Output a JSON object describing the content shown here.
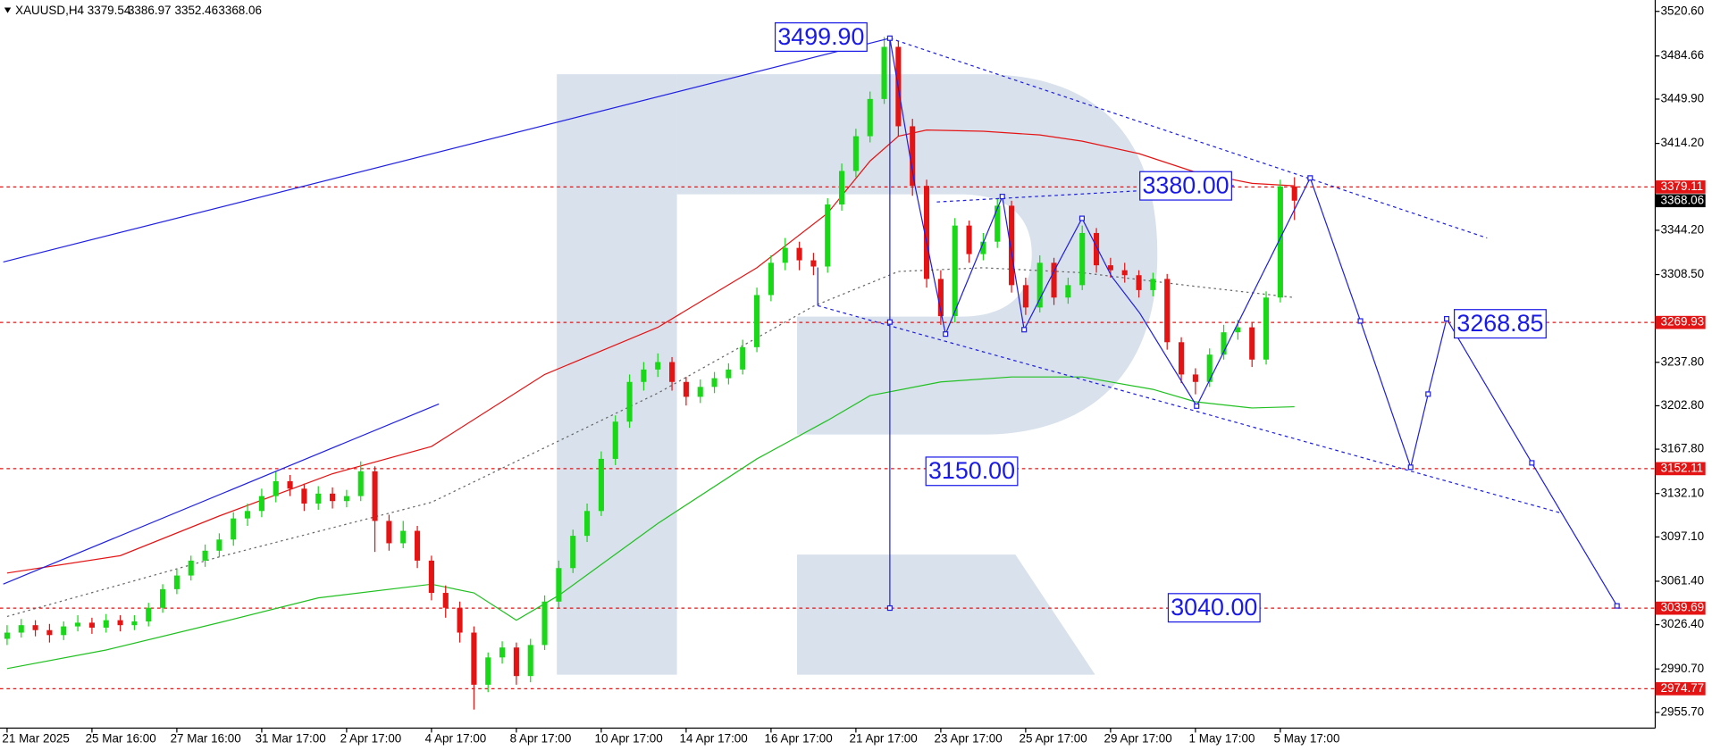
{
  "chart_data": {
    "type": "candlestick",
    "symbol": "XAUUSD,H4",
    "up_color": "#18d818",
    "down_color": "#e41414",
    "open": [
      3015,
      3020,
      3026,
      3022,
      3018,
      3025,
      3028,
      3024,
      3030,
      3026,
      3029,
      3040,
      3055,
      3066,
      3078,
      3086,
      3095,
      3112,
      3118,
      3130,
      3142,
      3136,
      3124,
      3132,
      3126,
      3130,
      3150,
      3110,
      3092,
      3102,
      3078,
      3052,
      3040,
      3020,
      2978,
      3000,
      3008,
      2985,
      3010,
      3045,
      3072,
      3098,
      3118,
      3160,
      3190,
      3222,
      3232,
      3238,
      3222,
      3210,
      3218,
      3225,
      3232,
      3250,
      3292,
      3318,
      3330,
      3320,
      3315,
      3365,
      3392,
      3420,
      3450,
      3492,
      3428,
      3380,
      3305,
      3275,
      3348,
      3325,
      3335,
      3364,
      3300,
      3282,
      3318,
      3290,
      3300,
      3342,
      3316,
      3312,
      3308,
      3296,
      3305,
      3254,
      3228,
      3222,
      3244,
      3262,
      3266,
      3240,
      3290,
      3379.54
    ],
    "high": [
      3026,
      3031,
      3030,
      3027,
      3029,
      3034,
      3032,
      3035,
      3034,
      3034,
      3044,
      3059,
      3071,
      3082,
      3091,
      3100,
      3117,
      3124,
      3136,
      3150,
      3147,
      3140,
      3138,
      3137,
      3135,
      3158,
      3154,
      3115,
      3110,
      3106,
      3082,
      3058,
      3045,
      3025,
      3004,
      3013,
      3012,
      3015,
      3050,
      3078,
      3103,
      3124,
      3166,
      3195,
      3228,
      3238,
      3245,
      3242,
      3226,
      3224,
      3230,
      3237,
      3256,
      3298,
      3324,
      3338,
      3335,
      3326,
      3370,
      3398,
      3426,
      3456,
      3499.9,
      3497,
      3434,
      3385,
      3312,
      3354,
      3352,
      3342,
      3370,
      3368,
      3306,
      3324,
      3322,
      3306,
      3348,
      3346,
      3322,
      3318,
      3312,
      3310,
      3309,
      3258,
      3233,
      3249,
      3268,
      3272,
      3270,
      3295,
      3385,
      3386.97
    ],
    "low": [
      3010,
      3016,
      3017,
      3012,
      3014,
      3021,
      3019,
      3020,
      3021,
      3022,
      3025,
      3036,
      3051,
      3062,
      3073,
      3081,
      3090,
      3106,
      3113,
      3125,
      3130,
      3118,
      3119,
      3120,
      3121,
      3126,
      3085,
      3086,
      3088,
      3072,
      3046,
      3032,
      3012,
      2958,
      2972,
      2995,
      2978,
      2980,
      3006,
      3040,
      3068,
      3093,
      3114,
      3155,
      3185,
      3215,
      3226,
      3215,
      3203,
      3205,
      3213,
      3220,
      3228,
      3246,
      3287,
      3312,
      3312,
      3308,
      3310,
      3360,
      3387,
      3415,
      3446,
      3420,
      3372,
      3298,
      3268,
      3270,
      3318,
      3320,
      3330,
      3294,
      3276,
      3278,
      3284,
      3285,
      3296,
      3310,
      3306,
      3302,
      3290,
      3291,
      3248,
      3221,
      3212,
      3218,
      3240,
      3256,
      3234,
      3236,
      3286,
      3352.46
    ],
    "close": [
      3020,
      3026,
      3022,
      3018,
      3025,
      3028,
      3024,
      3030,
      3026,
      3029,
      3040,
      3055,
      3066,
      3078,
      3086,
      3095,
      3112,
      3118,
      3130,
      3142,
      3136,
      3124,
      3132,
      3126,
      3130,
      3150,
      3110,
      3092,
      3102,
      3078,
      3052,
      3040,
      3020,
      2978,
      3000,
      3008,
      2985,
      3010,
      3045,
      3072,
      3098,
      3118,
      3160,
      3190,
      3222,
      3232,
      3238,
      3222,
      3210,
      3218,
      3225,
      3232,
      3250,
      3292,
      3318,
      3330,
      3320,
      3315,
      3365,
      3392,
      3420,
      3450,
      3492,
      3428,
      3380,
      3305,
      3275,
      3348,
      3325,
      3335,
      3364,
      3300,
      3282,
      3318,
      3290,
      3300,
      3342,
      3316,
      3312,
      3308,
      3296,
      3305,
      3254,
      3228,
      3222,
      3244,
      3262,
      3266,
      3240,
      3290,
      3379.54,
      3368.06
    ],
    "indicators": [
      {
        "color": "#e41414",
        "dashed": false,
        "x": [
          0,
          8,
          15,
          23,
          30,
          38,
          46,
          53,
          58,
          61,
          63,
          65,
          69,
          73,
          76,
          80,
          84,
          88,
          91
        ],
        "values": [
          3068,
          3082,
          3114,
          3148,
          3170,
          3228,
          3266,
          3314,
          3358,
          3400,
          3420,
          3425,
          3424,
          3421,
          3416,
          3406,
          3391,
          3382,
          3380
        ]
      },
      {
        "color": "#20c020",
        "dashed": false,
        "x": [
          0,
          7,
          15,
          22,
          30,
          33,
          36,
          39,
          46,
          53,
          58,
          61,
          66,
          71,
          76,
          81,
          84,
          88,
          91
        ],
        "values": [
          2991,
          3006,
          3028,
          3048,
          3059,
          3052,
          3030,
          3050,
          3108,
          3160,
          3191,
          3211,
          3222,
          3226,
          3226,
          3216,
          3206,
          3201,
          3202
        ]
      },
      {
        "color": "#666666",
        "dashed": true,
        "x": [
          0,
          15,
          30,
          46,
          57,
          63,
          69,
          76,
          84,
          91
        ],
        "values": [
          3033,
          3081,
          3125,
          3213,
          3283,
          3311,
          3314,
          3310,
          3299,
          3290
        ]
      }
    ],
    "levels": [
      3379.11,
      3269.93,
      3152.11,
      3039.69,
      2974.77
    ],
    "level_color": "#e41414",
    "annotations": [
      {
        "value": 3499.9,
        "label": "3499.90"
      },
      {
        "value": 3380,
        "label": "3380.00"
      },
      {
        "value": 3268.85,
        "label": "3268.85"
      },
      {
        "value": 3150,
        "label": "3150.00"
      },
      {
        "value": 3040,
        "label": "3040.00"
      }
    ],
    "xlim": [
      -0.5,
      116.5
    ],
    "ylim": [
      2943,
      3528
    ],
    "yticks": [
      {
        "value": 3520.6,
        "label": "3520.60"
      },
      {
        "value": 3484.66,
        "label": "3484.66"
      },
      {
        "value": 3449.9,
        "label": "3449.90"
      },
      {
        "value": 3414.2,
        "label": "3414.20"
      },
      {
        "value": 3344.2,
        "label": "3344.20"
      },
      {
        "value": 3308.5,
        "label": "3308.50"
      },
      {
        "value": 3237.8,
        "label": "3237.80"
      },
      {
        "value": 3202.8,
        "label": "3202.80"
      },
      {
        "value": 3167.8,
        "label": "3167.80"
      },
      {
        "value": 3132.1,
        "label": "3132.10"
      },
      {
        "value": 3097.1,
        "label": "3097.10"
      },
      {
        "value": 3061.4,
        "label": "3061.40"
      },
      {
        "value": 3026.4,
        "label": "3026.40"
      },
      {
        "value": 2990.7,
        "label": "2990.70"
      },
      {
        "value": 2955.7,
        "label": "2955.70"
      }
    ],
    "xticks": [
      {
        "value": 0,
        "label": "21 Mar 2025"
      },
      {
        "value": 6,
        "label": "25 Mar 16:00"
      },
      {
        "value": 12,
        "label": "27 Mar 16:00"
      },
      {
        "value": 18,
        "label": "31 Mar 17:00"
      },
      {
        "value": 24,
        "label": "2 Apr 17:00"
      },
      {
        "value": 30,
        "label": "4 Apr 17:00"
      },
      {
        "value": 36,
        "label": "8 Apr 17:00"
      },
      {
        "value": 42,
        "label": "10 Apr 17:00"
      },
      {
        "value": 48,
        "label": "14 Apr 17:00"
      },
      {
        "value": 54,
        "label": "16 Apr 17:00"
      },
      {
        "value": 60,
        "label": "21 Apr 17:00"
      },
      {
        "value": 66,
        "label": "23 Apr 17:00"
      },
      {
        "value": 72,
        "label": "25 Apr 17:00"
      },
      {
        "value": 78,
        "label": "29 Apr 17:00"
      },
      {
        "value": 84,
        "label": "1 May 17:00"
      },
      {
        "value": 90,
        "label": "5 May 17:00"
      }
    ]
  }
}
